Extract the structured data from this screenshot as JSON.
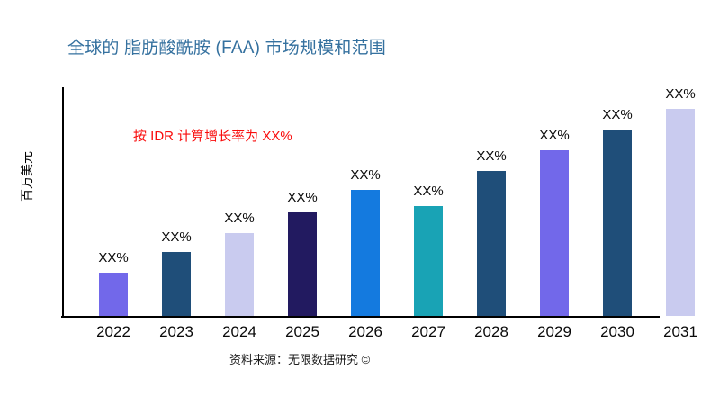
{
  "header": {
    "title": "全球的 脂肪酸酰胺 (FAA) 市场规模和范围",
    "title_color": "#35719F"
  },
  "annotation": {
    "text": "按 IDR 计算增长率为 XX%",
    "color": "#F90D0D"
  },
  "footer": {
    "source_text": "资料来源：无限数据研究 ©"
  },
  "chart_data": {
    "type": "bar",
    "title": "全球的 脂肪酸酰胺 (FAA) 市场规模和范围",
    "categories": [
      "2022",
      "2023",
      "2024",
      "2025",
      "2026",
      "2027",
      "2028",
      "2029",
      "2030",
      "2031"
    ],
    "values_relative": [
      21,
      31,
      40,
      50,
      61,
      53,
      70,
      80,
      90,
      100
    ],
    "data_labels": [
      "XX%",
      "XX%",
      "XX%",
      "XX%",
      "XX%",
      "XX%",
      "XX%",
      "XX%",
      "XX%",
      "XX%"
    ],
    "bar_colors": [
      "#7268EA",
      "#1F4E79",
      "#C9CBEF",
      "#221A60",
      "#147ADF",
      "#19A3B5",
      "#1F4E79",
      "#7268EA",
      "#1F4E79",
      "#C9CBEF"
    ],
    "xlabel": "",
    "ylabel": "百万美元",
    "value_axis": "unlabeled (values masked as XX%)",
    "grid": "off",
    "legend": "none"
  }
}
